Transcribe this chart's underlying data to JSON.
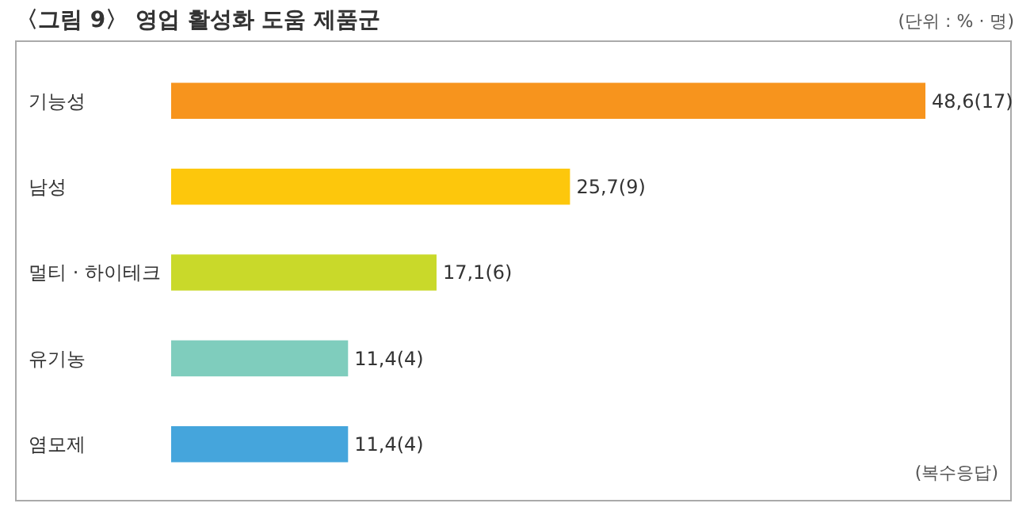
{
  "chart_data": {
    "type": "bar",
    "orientation": "horizontal",
    "title": "〈그림 9〉 영업 활성화 도움 제품군",
    "categories": [
      "기능성",
      "남성",
      "멀티 · 하이테크",
      "유기농",
      "염모제"
    ],
    "values": [
      48.6,
      25.7,
      17.1,
      11.4,
      11.4
    ],
    "colors": [
      "#f7941d",
      "#fdc70c",
      "#c9d92a",
      "#7fcdbd",
      "#45a5dc"
    ],
    "value_labels": [
      "48,6(17)",
      "25,7(9)",
      "17,1(6)",
      "11,4(4)",
      "11,4(4)"
    ],
    "annotations": [
      "(단위 : % · 명)",
      "(복수응답)"
    ]
  }
}
